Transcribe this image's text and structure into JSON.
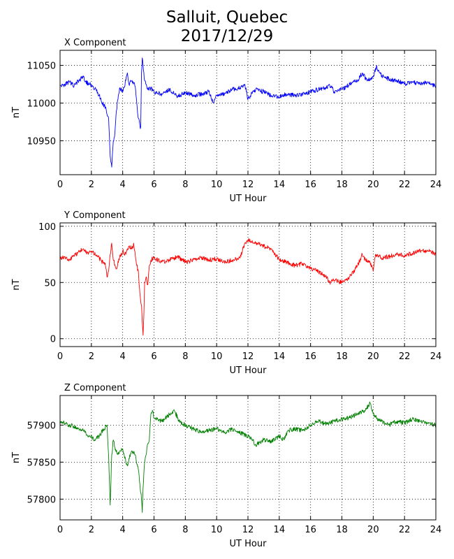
{
  "figure": {
    "title_line1": "Salluit, Quebec",
    "title_line2": "2017/12/29"
  },
  "chart_data": [
    {
      "type": "line",
      "title": "X Component",
      "xlabel": "UT Hour",
      "ylabel": "nT",
      "xlim": [
        0,
        24
      ],
      "ylim": [
        10905,
        11070
      ],
      "xticks": [
        0,
        2,
        4,
        6,
        8,
        10,
        12,
        14,
        16,
        18,
        20,
        22,
        24
      ],
      "yticks": [
        10950,
        11000,
        11050
      ],
      "grid": true,
      "color": "#0000ff",
      "series": [
        {
          "x": [
            0,
            0.3,
            0.6,
            0.9,
            1.2,
            1.5,
            1.6,
            1.9,
            2.1,
            2.3,
            2.5,
            2.7,
            2.9,
            3.0,
            3.1,
            3.2,
            3.3,
            3.4,
            3.5,
            3.6,
            3.8,
            4.0,
            4.2,
            4.3,
            4.4,
            4.6,
            4.8,
            4.9,
            5.0,
            5.1,
            5.15,
            5.2,
            5.25,
            5.3,
            5.4,
            5.5,
            5.6,
            5.8,
            6.0,
            6.5,
            7.0,
            7.5,
            8.0,
            8.5,
            9.0,
            9.5,
            9.8,
            10.0,
            10.5,
            11.0,
            11.5,
            11.8,
            12.0,
            12.2,
            12.5,
            13.0,
            13.5,
            14.0,
            14.5,
            15.0,
            15.5,
            16.0,
            16.5,
            17.0,
            17.2,
            17.5,
            18.0,
            18.5,
            19.0,
            19.3,
            19.6,
            20.0,
            20.2,
            20.4,
            20.6,
            21.0,
            21.5,
            22.0,
            22.5,
            23.0,
            23.5,
            24.0
          ],
          "y": [
            11022,
            11025,
            11028,
            11023,
            11030,
            11035,
            11028,
            11025,
            11022,
            11018,
            11010,
            11000,
            10995,
            10985,
            10980,
            10930,
            10915,
            10950,
            10960,
            10990,
            11020,
            11015,
            11030,
            11040,
            11025,
            11030,
            11022,
            11000,
            10980,
            10970,
            10968,
            11040,
            11060,
            11050,
            11030,
            11025,
            11018,
            11020,
            11015,
            11012,
            11018,
            11008,
            11015,
            11010,
            11012,
            11015,
            11000,
            11010,
            11012,
            11018,
            11020,
            11025,
            11005,
            11012,
            11018,
            11015,
            11010,
            11008,
            11012,
            11010,
            11012,
            11015,
            11018,
            11020,
            11025,
            11015,
            11018,
            11025,
            11030,
            11040,
            11030,
            11035,
            11048,
            11040,
            11035,
            11032,
            11030,
            11025,
            11028,
            11025,
            11028,
            11022
          ]
        }
      ]
    },
    {
      "type": "line",
      "title": "Y Component",
      "xlabel": "UT Hour",
      "ylabel": "nT",
      "xlim": [
        0,
        24
      ],
      "ylim": [
        -7,
        103
      ],
      "xticks": [
        0,
        2,
        4,
        6,
        8,
        10,
        12,
        14,
        16,
        18,
        20,
        22,
        24
      ],
      "yticks": [
        0,
        50,
        100
      ],
      "grid": true,
      "color": "#ff0000",
      "series": [
        {
          "x": [
            0,
            0.3,
            0.6,
            1.0,
            1.5,
            1.8,
            2.0,
            2.3,
            2.6,
            2.9,
            3.0,
            3.1,
            3.2,
            3.3,
            3.4,
            3.6,
            3.8,
            4.0,
            4.2,
            4.4,
            4.6,
            4.7,
            4.8,
            4.9,
            5.0,
            5.1,
            5.2,
            5.25,
            5.3,
            5.35,
            5.4,
            5.5,
            5.6,
            5.7,
            5.8,
            6.0,
            6.5,
            7.0,
            7.5,
            8.0,
            8.5,
            9.0,
            9.5,
            10.0,
            10.5,
            11.0,
            11.5,
            11.8,
            12.0,
            12.5,
            13.0,
            13.5,
            14.0,
            14.5,
            15.0,
            15.5,
            16.0,
            16.5,
            17.0,
            17.2,
            17.5,
            18.0,
            18.5,
            19.0,
            19.3,
            19.5,
            19.8,
            20.0,
            20.1,
            20.2,
            20.5,
            21.0,
            21.5,
            22.0,
            22.5,
            23.0,
            23.5,
            24.0
          ],
          "y": [
            72,
            73,
            70,
            75,
            80,
            75,
            78,
            74,
            70,
            65,
            55,
            60,
            75,
            85,
            70,
            62,
            72,
            78,
            75,
            82,
            80,
            85,
            75,
            65,
            60,
            40,
            30,
            15,
            3,
            20,
            50,
            55,
            48,
            65,
            70,
            72,
            68,
            70,
            73,
            68,
            70,
            72,
            70,
            71,
            68,
            70,
            72,
            85,
            88,
            85,
            82,
            80,
            70,
            68,
            65,
            67,
            62,
            60,
            55,
            50,
            52,
            50,
            55,
            65,
            75,
            70,
            68,
            60,
            72,
            75,
            72,
            73,
            75,
            74,
            76,
            78,
            78,
            75
          ]
        }
      ]
    },
    {
      "type": "line",
      "title": "Z Component",
      "xlabel": "UT Hour",
      "ylabel": "nT",
      "xlim": [
        0,
        24
      ],
      "ylim": [
        57772,
        57940
      ],
      "xticks": [
        0,
        2,
        4,
        6,
        8,
        10,
        12,
        14,
        16,
        18,
        20,
        22,
        24
      ],
      "yticks": [
        57800,
        57850,
        57900
      ],
      "grid": true,
      "color": "#008000",
      "series": [
        {
          "x": [
            0,
            0.3,
            0.6,
            1.0,
            1.3,
            1.6,
            1.9,
            2.2,
            2.5,
            2.8,
            3.0,
            3.1,
            3.2,
            3.3,
            3.4,
            3.5,
            3.7,
            4.0,
            4.2,
            4.3,
            4.4,
            4.6,
            4.8,
            5.0,
            5.1,
            5.2,
            5.25,
            5.3,
            5.4,
            5.5,
            5.6,
            5.7,
            5.8,
            5.9,
            6.0,
            6.5,
            7.0,
            7.3,
            7.6,
            8.0,
            8.5,
            9.0,
            9.5,
            10.0,
            10.5,
            11.0,
            11.5,
            12.0,
            12.3,
            12.5,
            13.0,
            13.5,
            14.0,
            14.3,
            14.6,
            15.0,
            15.5,
            16.0,
            16.5,
            17.0,
            17.5,
            18.0,
            18.5,
            19.0,
            19.5,
            19.8,
            20.0,
            20.2,
            20.5,
            21.0,
            21.5,
            22.0,
            22.5,
            23.0,
            23.5,
            24.0
          ],
          "y": [
            57905,
            57902,
            57900,
            57898,
            57895,
            57890,
            57885,
            57880,
            57885,
            57895,
            57900,
            57860,
            57792,
            57860,
            57880,
            57870,
            57860,
            57868,
            57850,
            57845,
            57855,
            57865,
            57860,
            57840,
            57820,
            57800,
            57782,
            57815,
            57850,
            57860,
            57875,
            57880,
            57915,
            57920,
            57910,
            57905,
            57915,
            57920,
            57905,
            57900,
            57895,
            57890,
            57893,
            57895,
            57890,
            57895,
            57890,
            57885,
            57880,
            57873,
            57880,
            57878,
            57885,
            57880,
            57893,
            57895,
            57893,
            57900,
            57905,
            57902,
            57905,
            57908,
            57910,
            57915,
            57920,
            57930,
            57915,
            57910,
            57905,
            57900,
            57905,
            57903,
            57908,
            57905,
            57902,
            57900
          ]
        }
      ]
    }
  ]
}
